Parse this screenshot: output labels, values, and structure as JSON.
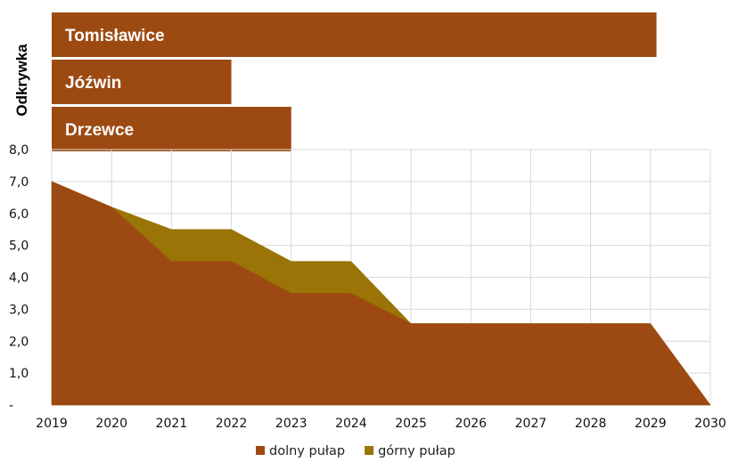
{
  "chart_data": {
    "type": "area",
    "y_axis_label": "Odkrywka",
    "gantt": [
      {
        "name": "Tomisławice",
        "start": 2019,
        "end": 2029.1
      },
      {
        "name": "Jóźwin",
        "start": 2019,
        "end": 2022
      },
      {
        "name": "Drzewce",
        "start": 2019,
        "end": 2023
      }
    ],
    "x": [
      2019,
      2020,
      2021,
      2022,
      2023,
      2024,
      2025,
      2026,
      2027,
      2028,
      2029,
      2030
    ],
    "x_tick_labels": [
      "2019",
      "2020",
      "2021",
      "2022",
      "2023",
      "2024",
      "2025",
      "2026",
      "2027",
      "2028",
      "2029",
      "2030"
    ],
    "ylim": [
      0,
      8
    ],
    "y_tick_labels": [
      "-",
      "1,0",
      "2,0",
      "3,0",
      "4,0",
      "5,0",
      "6,0",
      "7,0",
      "8,0"
    ],
    "grid": true,
    "legend_position": "bottom",
    "series": [
      {
        "name": "dolny pułap",
        "color": "#9c4a12",
        "points": [
          [
            2019,
            7.0
          ],
          [
            2020,
            6.2
          ],
          [
            2021,
            4.5
          ],
          [
            2022,
            4.5
          ],
          [
            2023,
            3.5
          ],
          [
            2024,
            3.5
          ],
          [
            2025,
            2.55
          ],
          [
            2026,
            2.55
          ],
          [
            2027,
            2.55
          ],
          [
            2028,
            2.55
          ],
          [
            2029,
            2.55
          ],
          [
            2030,
            0
          ]
        ]
      },
      {
        "name": "górny pułap",
        "color": "#9a7407",
        "points": [
          [
            2019,
            7.0
          ],
          [
            2020,
            6.2
          ],
          [
            2021,
            5.5
          ],
          [
            2022,
            5.5
          ],
          [
            2023,
            4.5
          ],
          [
            2024,
            4.5
          ],
          [
            2025,
            2.55
          ],
          [
            2026,
            2.55
          ],
          [
            2027,
            2.55
          ],
          [
            2028,
            2.55
          ],
          [
            2029,
            2.55
          ],
          [
            2030,
            0
          ]
        ]
      }
    ],
    "gantt_color": "#9c4a12"
  }
}
